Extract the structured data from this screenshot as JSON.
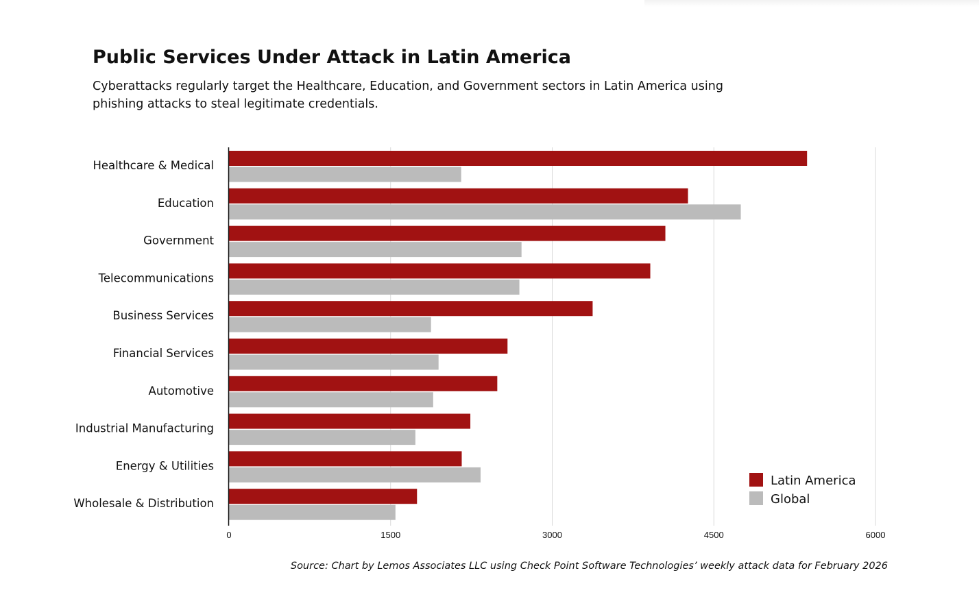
{
  "title": "Public Services Under Attack in Latin America",
  "subtitle": "Cyberattacks regularly target the Healthcare, Education, and Government sectors in Latin America using phishing attacks to steal legitimate credentials.",
  "source": "Source: Chart by Lemos Associates LLC using Check Point Software Technologies’ weekly attack data for February 2026",
  "chart_data": {
    "type": "bar",
    "orientation": "horizontal",
    "categories": [
      "Healthcare & Medical",
      "Education",
      "Government",
      "Telecommunications",
      "Business Services",
      "Financial Services",
      "Automotive",
      "Industrial Manufacturing",
      "Energy & Utilities",
      "Wholesale & Distribution"
    ],
    "series": [
      {
        "name": "Latin America",
        "color": "#a11212",
        "values": [
          5365,
          4260,
          4050,
          3910,
          3375,
          2585,
          2490,
          2240,
          2160,
          1745
        ]
      },
      {
        "name": "Global",
        "color": "#bbbbbb",
        "values": [
          2155,
          4750,
          2715,
          2695,
          1875,
          1945,
          1895,
          1730,
          2335,
          1545
        ]
      }
    ],
    "xlim": [
      0,
      6000
    ],
    "xticks": [
      0,
      1500,
      3000,
      4500,
      6000
    ],
    "xtick_labels": [
      "0",
      "1500",
      "3000",
      "4500",
      "6000"
    ],
    "grid": true,
    "legend_position": "bottom-right"
  }
}
